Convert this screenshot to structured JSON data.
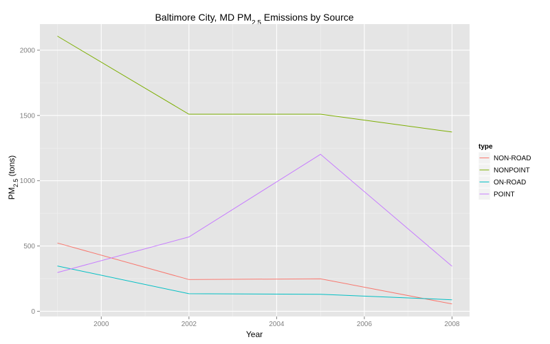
{
  "chart_data": {
    "type": "line",
    "title": "Baltimore City, MD PM",
    "title_sub": "2.5",
    "title_suffix": " Emissions by Source",
    "xlabel": "Year",
    "ylabel": "PM",
    "ylabel_sub": "2.5",
    "ylabel_suffix": " (tons)",
    "x": [
      1999,
      2002,
      2005,
      2008
    ],
    "xlim": [
      1998.6,
      2008.4
    ],
    "ylim": [
      -40,
      2200
    ],
    "x_ticks": [
      2000,
      2002,
      2004,
      2006,
      2008
    ],
    "y_ticks": [
      0,
      500,
      1000,
      1500,
      2000
    ],
    "grid": true,
    "panel_background": "#E5E5E5",
    "legend": {
      "title": "type",
      "position": "right"
    },
    "series": [
      {
        "name": "NON-ROAD",
        "color": "#F8766D",
        "values": [
          522.94,
          242.85,
          248.93,
          55.82
        ]
      },
      {
        "name": "NONPOINT",
        "color": "#7CAE00",
        "values": [
          2107.63,
          1509.5,
          1509.5,
          1373.21
        ]
      },
      {
        "name": "ON-ROAD",
        "color": "#00BFC4",
        "values": [
          346.82,
          134.31,
          130.43,
          88.28
        ]
      },
      {
        "name": "POINT",
        "color": "#C77CFF",
        "values": [
          296.8,
          569.26,
          1202.49,
          344.98
        ]
      }
    ]
  }
}
